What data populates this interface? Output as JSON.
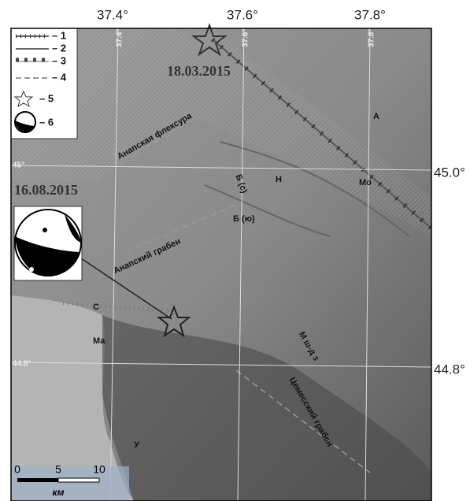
{
  "axes": {
    "top": [
      "37.4°",
      "37.6°",
      "37.8°"
    ],
    "right": [
      "45.0°",
      "44.8°"
    ]
  },
  "grid_labels": {
    "lon": [
      "37.4°",
      "37.6°",
      "37.8°"
    ],
    "lat": [
      "45°",
      "44.8°"
    ]
  },
  "legend": [
    "– 1",
    "– 2",
    "– 3",
    "– 4",
    "– 5",
    "– 6"
  ],
  "events": [
    "18.03.2015",
    "16.08.2015"
  ],
  "places": [
    "Анапская флексура",
    "Анапский грабен",
    "Цемесский грабен",
    "А",
    "Мо",
    "Н",
    "Б (с)",
    "Б (ю)",
    "С",
    "Ма",
    "М ш-д з",
    "У"
  ],
  "scale": {
    "ticks": [
      "0",
      "5",
      "10"
    ],
    "unit": "км"
  }
}
